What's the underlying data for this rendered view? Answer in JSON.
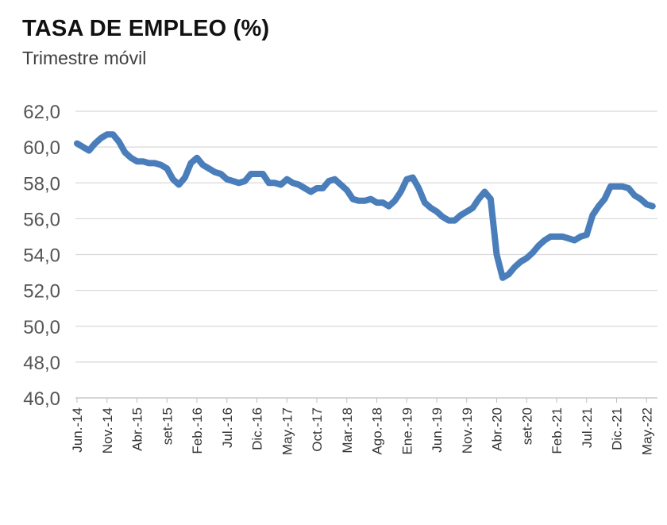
{
  "chart_data": {
    "type": "line",
    "title": "TASA DE EMPLEO (%)",
    "subtitle": "Trimestre móvil",
    "xlabel": "",
    "ylabel": "",
    "ylim": [
      46,
      62
    ],
    "yticks": [
      "62,0",
      "60,0",
      "58,0",
      "56,0",
      "54,0",
      "52,0",
      "50,0",
      "48,0",
      "46,0"
    ],
    "ytick_values": [
      62,
      60,
      58,
      56,
      54,
      52,
      50,
      48,
      46
    ],
    "xtick_labels": [
      "Jun.-14",
      "Nov.-14",
      "Abr.-15",
      "set-15",
      "Feb.-16",
      "Jul.-16",
      "Dic.-16",
      "May.-17",
      "Oct.-17",
      "Mar.-18",
      "Ago.-18",
      "Ene.-19",
      "Jun.-19",
      "Nov.-19",
      "Abr.-20",
      "set-20",
      "Feb.-21",
      "Jul.-21",
      "Dic.-21",
      "May.-22"
    ],
    "grid": "horizontal",
    "series_color": "#4a7ebb",
    "series": [
      {
        "x": [
          "Jun.-14",
          "Jul.-14",
          "Ago.-14",
          "Sep.-14",
          "Oct.-14",
          "Nov.-14",
          "Dic.-14",
          "Ene.-15",
          "Feb.-15",
          "Mar.-15",
          "Abr.-15",
          "May.-15",
          "Jun.-15",
          "Jul.-15",
          "Ago.-15",
          "set-15",
          "Oct.-15",
          "Nov.-15",
          "Dic.-15",
          "Ene.-16",
          "Feb.-16",
          "Mar.-16",
          "Abr.-16",
          "May.-16",
          "Jun.-16",
          "Jul.-16",
          "Ago.-16",
          "Sep.-16",
          "Oct.-16",
          "Nov.-16",
          "Dic.-16",
          "Ene.-17",
          "Feb.-17",
          "Mar.-17",
          "Abr.-17",
          "May.-17",
          "Jun.-17",
          "Jul.-17",
          "Ago.-17",
          "Sep.-17",
          "Oct.-17",
          "Nov.-17",
          "Dic.-17",
          "Ene.-18",
          "Feb.-18",
          "Mar.-18",
          "Abr.-18",
          "May.-18",
          "Jun.-18",
          "Jul.-18",
          "Ago.-18",
          "Sep.-18",
          "Oct.-18",
          "Nov.-18",
          "Dic.-18",
          "Ene.-19",
          "Feb.-19",
          "Mar.-19",
          "Abr.-19",
          "May.-19",
          "Jun.-19",
          "Jul.-19",
          "Ago.-19",
          "Sep.-19",
          "Oct.-19",
          "Nov.-19",
          "Dic.-19",
          "Ene.-20",
          "Feb.-20",
          "Mar.-20",
          "Abr.-20",
          "May.-20",
          "Jun.-20",
          "Jul.-20",
          "Ago.-20",
          "set-20",
          "Oct.-20",
          "Nov.-20",
          "Dic.-20",
          "Ene.-21",
          "Feb.-21",
          "Mar.-21",
          "Abr.-21",
          "May.-21",
          "Jun.-21",
          "Jul.-21",
          "Ago.-21",
          "Sep.-21",
          "Oct.-21",
          "Nov.-21",
          "Dic.-21",
          "Ene.-22",
          "Feb.-22",
          "Mar.-22",
          "Abr.-22",
          "May.-22",
          "Jun.-22"
        ],
        "values": [
          60.2,
          60.0,
          59.8,
          60.2,
          60.5,
          60.7,
          60.7,
          60.3,
          59.7,
          59.4,
          59.2,
          59.2,
          59.1,
          59.1,
          59.0,
          58.8,
          58.2,
          57.9,
          58.3,
          59.1,
          59.4,
          59.0,
          58.8,
          58.6,
          58.5,
          58.2,
          58.1,
          58.0,
          58.1,
          58.5,
          58.5,
          58.5,
          58.0,
          58.0,
          57.9,
          58.2,
          58.0,
          57.9,
          57.7,
          57.5,
          57.7,
          57.7,
          58.1,
          58.2,
          57.9,
          57.6,
          57.1,
          57.0,
          57.0,
          57.1,
          56.9,
          56.9,
          56.7,
          57.0,
          57.5,
          58.2,
          58.3,
          57.7,
          56.9,
          56.6,
          56.4,
          56.1,
          55.9,
          55.9,
          56.2,
          56.4,
          56.6,
          57.1,
          57.5,
          57.1,
          54.0,
          52.7,
          52.9,
          53.3,
          53.6,
          53.8,
          54.1,
          54.5,
          54.8,
          55.0,
          55.0,
          55.0,
          54.9,
          54.8,
          55.0,
          55.1,
          56.2,
          56.7,
          57.1,
          57.8,
          57.8,
          57.8,
          57.7,
          57.3,
          57.1,
          56.8,
          56.7
        ]
      }
    ]
  }
}
